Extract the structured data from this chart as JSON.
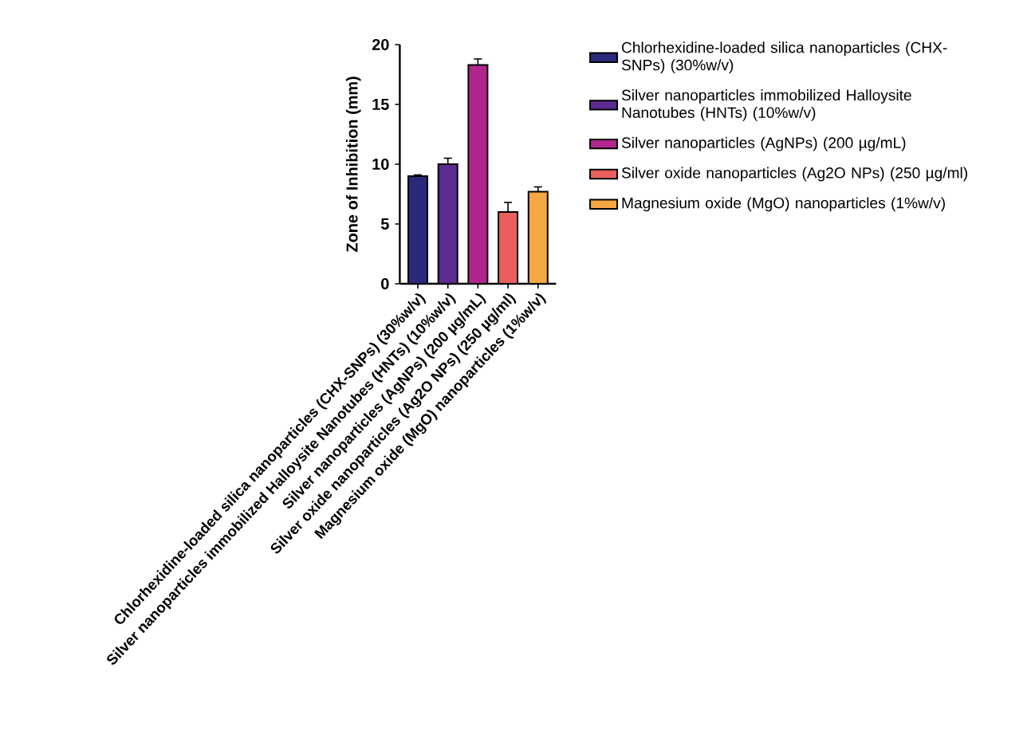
{
  "chart_data": {
    "type": "bar",
    "ylabel": "Zone of Inhibition (mm)",
    "categories": [
      "Chlorhexidine-loaded silica nanoparticles (CHX-SNPs) (30%w/v)",
      "Silver nanoparticles immobilized Halloysite Nanotubes (HNTs) (10%w/v)",
      "Silver nanoparticles (AgNPs) (200 µg/mL)",
      "Silver oxide nanoparticles (Ag2O NPs) (250 µg/ml)",
      "Magnesium oxide (MgO) nanoparticles (1%w/v)"
    ],
    "series": [
      {
        "name": "Chlorhexidine-loaded silica nanoparticles (CHX-SNPs) (30%w/v)",
        "color": "#2b2a7a",
        "values": [
          9.0,
          null,
          null,
          null,
          null
        ],
        "errors": [
          0.1,
          null,
          null,
          null,
          null
        ]
      },
      {
        "name": "Silver nanoparticles immobilized Halloysite Nanotubes (HNTs) (10%w/v)",
        "color": "#5c2b8f",
        "values": [
          null,
          10.0,
          null,
          null,
          null
        ],
        "errors": [
          null,
          0.5,
          null,
          null,
          null
        ]
      },
      {
        "name": "Silver nanoparticles (AgNPs) (200 µg/mL)",
        "color": "#b0268c",
        "values": [
          null,
          null,
          18.3,
          null,
          null
        ],
        "errors": [
          null,
          null,
          0.5,
          null,
          null
        ]
      },
      {
        "name": "Silver oxide nanoparticles (Ag2O NPs) (250 µg/ml)",
        "color": "#e8605e",
        "values": [
          null,
          null,
          null,
          6.0,
          null
        ],
        "errors": [
          null,
          null,
          null,
          0.8,
          null
        ]
      },
      {
        "name": "Magnesium oxide (MgO) nanoparticles (1%w/v)",
        "color": "#f5a742",
        "values": [
          null,
          null,
          null,
          null,
          7.7
        ],
        "errors": [
          null,
          null,
          null,
          null,
          0.4
        ]
      }
    ],
    "ylim": [
      0,
      20
    ],
    "yticks": [
      0,
      5,
      10,
      15,
      20
    ],
    "legend": "right"
  }
}
